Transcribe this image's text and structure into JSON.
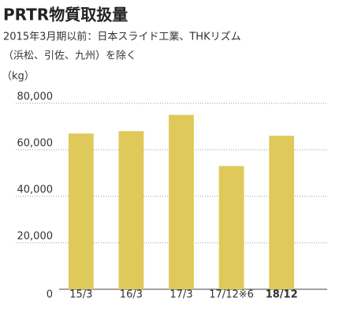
{
  "chart_data": {
    "type": "bar",
    "title": "PRTR物質取扱量",
    "subtitle": [
      "2015年3月期以前：日本スライド工業、THKリズム",
      "（浜松、引佐、九州）を除く"
    ],
    "y_label": "（kg）",
    "categories": [
      "15/3",
      "16/3",
      "17/3",
      "17/12※6",
      "18/12"
    ],
    "values": [
      67000,
      68000,
      75000,
      53000,
      66000
    ],
    "color": "#dfc95a",
    "highlight_index": 4,
    "ylim": [
      0,
      80000
    ],
    "yticks": [
      0,
      {
        "value": 20000,
        "label": "20,000"
      },
      {
        "value": 40000,
        "label": "40,000"
      },
      {
        "value": 60000,
        "label": "60,000"
      },
      {
        "value": 80000,
        "label": "80,000"
      }
    ],
    "grid": true
  }
}
